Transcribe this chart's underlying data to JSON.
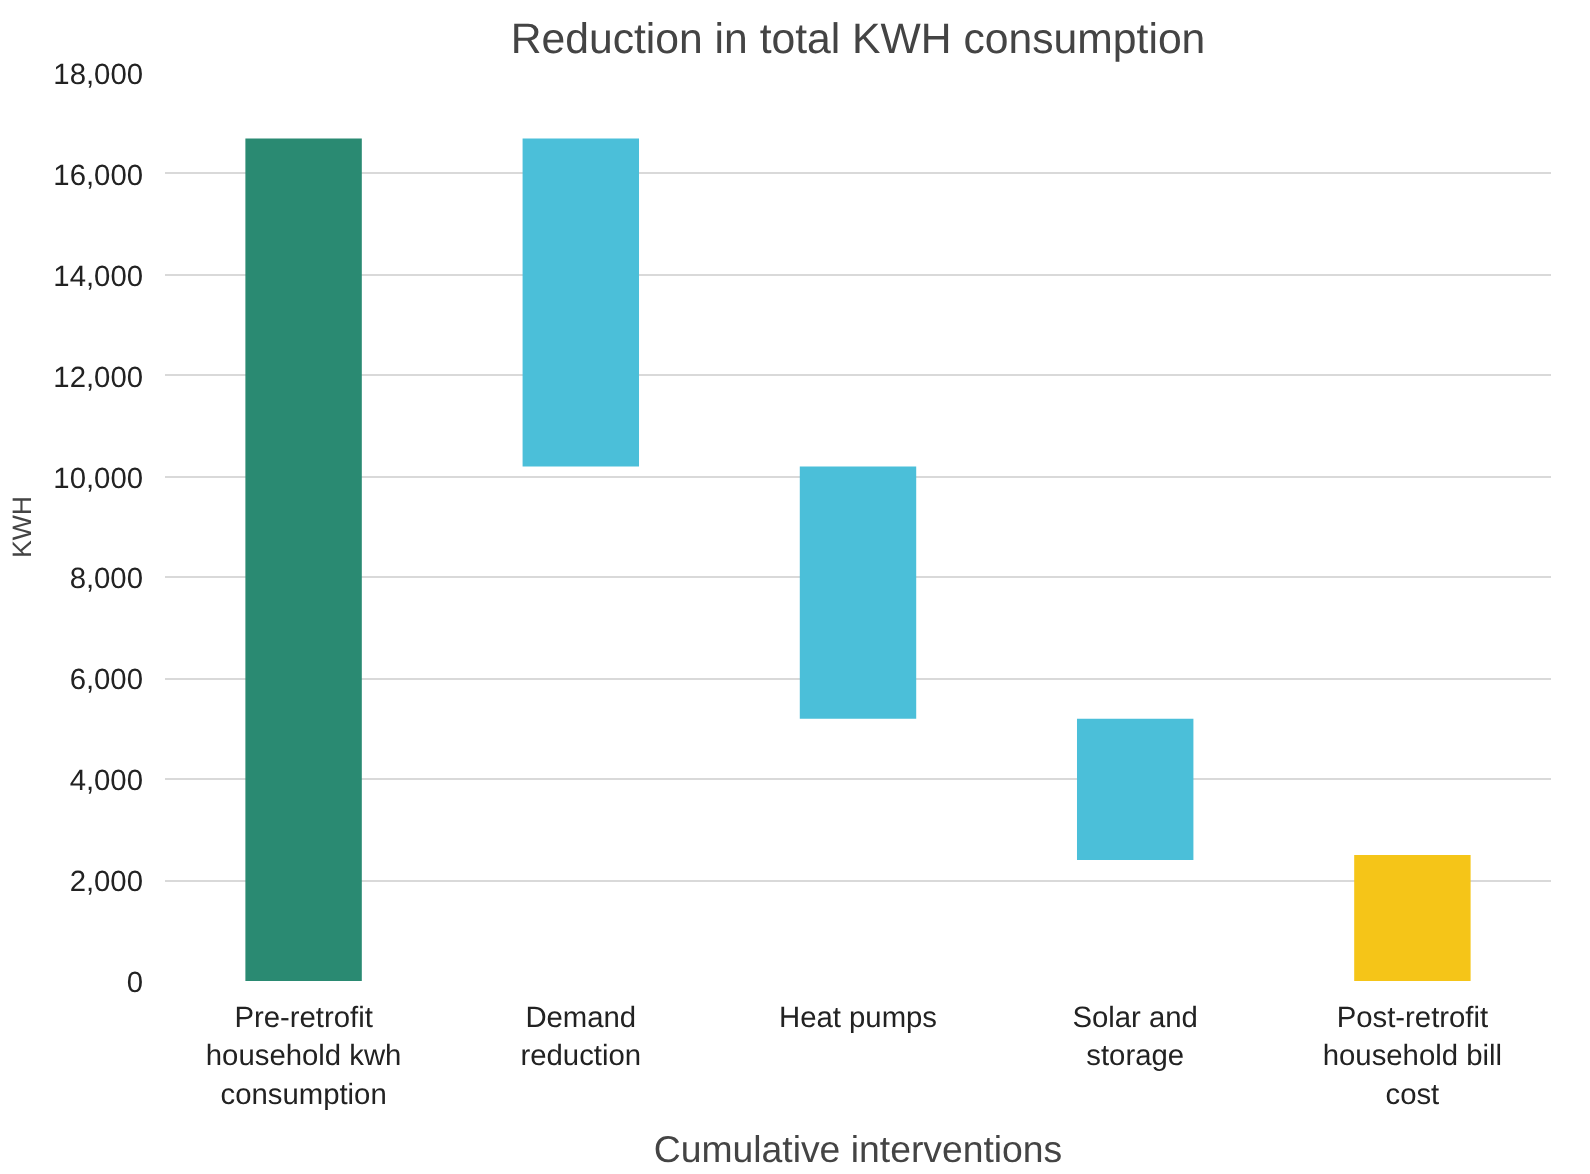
{
  "chart_data": {
    "type": "bar",
    "title": "Reduction in total KWH consumption",
    "xlabel": "Cumulative interventions",
    "ylabel": "KWH",
    "categories": [
      "Pre-retrofit household kwh consumption",
      "Demand reduction",
      "Heat pumps",
      "Solar and storage",
      "Post-retrofit household bill cost"
    ],
    "values": [
      16700,
      6500,
      5000,
      2800,
      2500
    ],
    "base": [
      0,
      10200,
      5200,
      2400,
      0
    ],
    "colors": [
      "#2a8a72",
      "#4bbfd9",
      "#4bbfd9",
      "#4bbfd9",
      "#f5c518"
    ],
    "ylim": [
      0,
      18000
    ],
    "yticks": [
      {
        "value": 0,
        "label": "0"
      },
      {
        "value": 2000,
        "label": "2,000"
      },
      {
        "value": 4000,
        "label": "4,000"
      },
      {
        "value": 6000,
        "label": "6,000"
      },
      {
        "value": 8000,
        "label": "8,000"
      },
      {
        "value": 10000,
        "label": "10,000"
      },
      {
        "value": 12000,
        "label": "12,000"
      },
      {
        "value": 14000,
        "label": "14,000"
      },
      {
        "value": 16000,
        "label": "16,000"
      },
      {
        "value": 18000,
        "label": "18,000"
      }
    ],
    "grid": "y"
  }
}
